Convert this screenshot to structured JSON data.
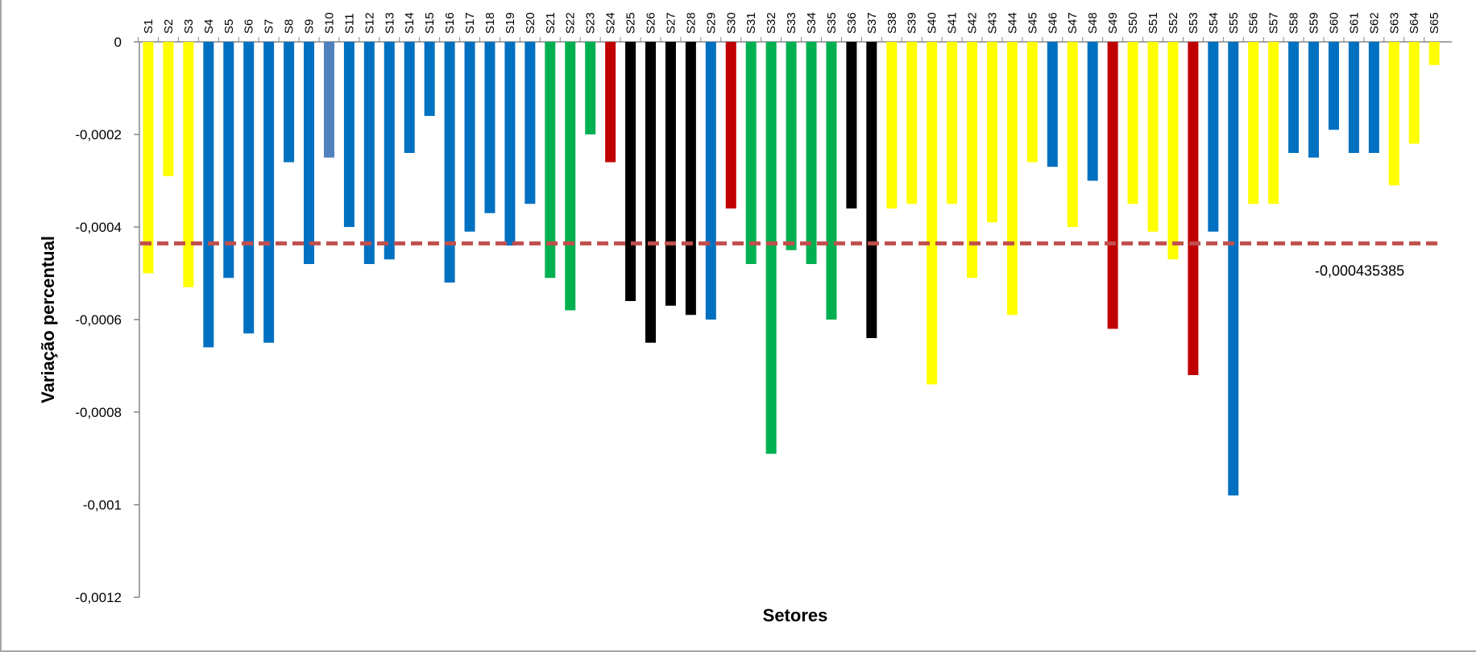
{
  "chart_data": {
    "type": "bar",
    "title": "",
    "xlabel": "Setores",
    "ylabel": "Variação percentual",
    "ylim": [
      -0.0012,
      0
    ],
    "yticks": [
      "0",
      "-0,0002",
      "-0,0004",
      "-0,0006",
      "-0,0008",
      "-0,001",
      "-0,0012"
    ],
    "ytick_values": [
      0,
      -0.0002,
      -0.0004,
      -0.0006,
      -0.0008,
      -0.001,
      -0.0012
    ],
    "grid": false,
    "legend": "none",
    "categories": [
      "S1",
      "S2",
      "S3",
      "S4",
      "S5",
      "S6",
      "S7",
      "S8",
      "S9",
      "S10",
      "S11",
      "S12",
      "S13",
      "S14",
      "S15",
      "S16",
      "S17",
      "S18",
      "S19",
      "S20",
      "S21",
      "S22",
      "S23",
      "S24",
      "S25",
      "S26",
      "S27",
      "S28",
      "S29",
      "S30",
      "S31",
      "S32",
      "S33",
      "S34",
      "S35",
      "S36",
      "S37",
      "S38",
      "S39",
      "S40",
      "S41",
      "S42",
      "S43",
      "S44",
      "S45",
      "S46",
      "S47",
      "S48",
      "S49",
      "S50",
      "S51",
      "S52",
      "S53",
      "S54",
      "S55",
      "S56",
      "S57",
      "S58",
      "S59",
      "S60",
      "S61",
      "S62",
      "S63",
      "S64",
      "S65"
    ],
    "values": [
      -0.0005,
      -0.00029,
      -0.00053,
      -0.00066,
      -0.00051,
      -0.00063,
      -0.00065,
      -0.00026,
      -0.00048,
      -0.00025,
      -0.0004,
      -0.00048,
      -0.00047,
      -0.00024,
      -0.00016,
      -0.00052,
      -0.00041,
      -0.00037,
      -0.00044,
      -0.00035,
      -0.00051,
      -0.00058,
      -0.0002,
      -0.00026,
      -0.00056,
      -0.00065,
      -0.00057,
      -0.00059,
      -0.0006,
      -0.00036,
      -0.00048,
      -0.00089,
      -0.00045,
      -0.00048,
      -0.0006,
      -0.00036,
      -0.00064,
      -0.00036,
      -0.00035,
      -0.00074,
      -0.00035,
      -0.00051,
      -0.00039,
      -0.00059,
      -0.00026,
      -0.00027,
      -0.0004,
      -0.0003,
      -0.00062,
      -0.00035,
      -0.00041,
      -0.00047,
      -0.00072,
      -0.00041,
      -0.00098,
      -0.00035,
      -0.00035,
      -0.00024,
      -0.00025,
      -0.00019,
      -0.00024,
      -0.00024,
      -0.00031,
      -0.00022,
      -5e-05
    ],
    "bar_colors": [
      "yellow",
      "yellow",
      "yellow",
      "blue",
      "blue",
      "blue",
      "blue",
      "blue",
      "blue",
      "steelblue",
      "blue",
      "blue",
      "blue",
      "blue",
      "blue",
      "blue",
      "blue",
      "blue",
      "blue",
      "blue",
      "green",
      "green",
      "green",
      "red",
      "black",
      "black",
      "black",
      "black",
      "blue",
      "red",
      "green",
      "green",
      "green",
      "green",
      "green",
      "black",
      "black",
      "yellow",
      "yellow",
      "yellow",
      "yellow",
      "yellow",
      "yellow",
      "yellow",
      "yellow",
      "blue",
      "yellow",
      "blue",
      "red",
      "yellow",
      "yellow",
      "yellow",
      "red",
      "blue",
      "blue",
      "yellow",
      "yellow",
      "blue",
      "blue",
      "blue",
      "blue",
      "blue",
      "yellow",
      "yellow",
      "yellow"
    ],
    "palette": {
      "yellow": "#ffff00",
      "blue": "#0070c0",
      "steelblue": "#4f81bd",
      "green": "#00b050",
      "red": "#c00000",
      "black": "#000000"
    },
    "reference_line": {
      "value": -0.000435385,
      "label": "-0,000435385",
      "color": "#c0504d",
      "style": "dashed"
    }
  }
}
